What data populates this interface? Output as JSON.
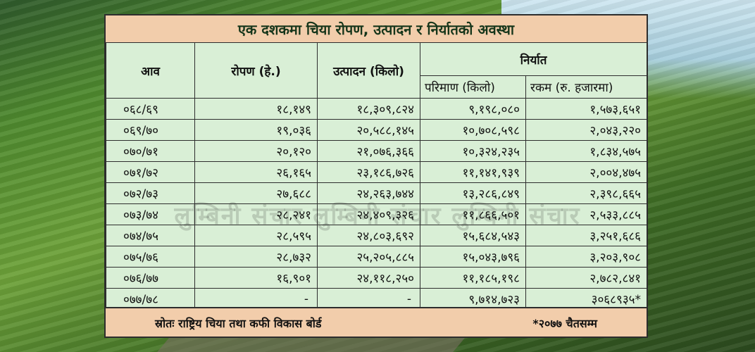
{
  "title": "एक दशकमा चिया रोपण, उत्पादन र निर्यातको अवस्था",
  "headers": {
    "year": "आव",
    "plantation": "रोपण (हे.)",
    "production": "उत्पादन (किलो)",
    "export": "निर्यात",
    "quantity": "परिमाण (किलो)",
    "amount": "रकम (रु. हजारमा)"
  },
  "rows": [
    {
      "year": "०६८/६९",
      "plantation": "१८,१४९",
      "production": "१८,३०९,८२४",
      "quantity": "९,१९८,०८०",
      "amount": "१,५७३,६५१"
    },
    {
      "year": "०६९/७०",
      "plantation": "१९,०३६",
      "production": "२०,५८८,१४५",
      "quantity": "१०,७०८,५९८",
      "amount": "२,०४३,२२०"
    },
    {
      "year": "०७०/७१",
      "plantation": "२०,१२०",
      "production": "२१,०७६,३६६",
      "quantity": "१०,३२४,२३५",
      "amount": "१,८३४,५७५"
    },
    {
      "year": "०७१/७२",
      "plantation": "२६,१६५",
      "production": "२३,१८६,७२६",
      "quantity": "११,१४१,९३९",
      "amount": "२,००४,४७५"
    },
    {
      "year": "०७२/७३",
      "plantation": "२७,६८८",
      "production": "२४,२६३,७४४",
      "quantity": "१३,२८६,८४९",
      "amount": "२,३९८,६६५"
    },
    {
      "year": "०७३/७४",
      "plantation": "२८,२४१",
      "production": "२४,४०९,३२६",
      "quantity": "११,८६६,५०१",
      "amount": "२,५३३,८८५"
    },
    {
      "year": "०७४/७५",
      "plantation": "२८,५९५",
      "production": "२४,८०३,६९२",
      "quantity": "१५,६८४,५४३",
      "amount": "३,२५१,६८६"
    },
    {
      "year": "०७५/७६",
      "plantation": "२८,७३२",
      "production": "२५,२०५,८८५",
      "quantity": "१५,०४३,७९६",
      "amount": "३,२०३,९०८"
    },
    {
      "year": "०७६/७७",
      "plantation": "१६,९०१",
      "production": "२४,११८,२५०",
      "quantity": "११,१८५,१९८",
      "amount": "२,७८२,८४१"
    },
    {
      "year": "०७७/७८",
      "plantation": "-",
      "production": "-",
      "quantity": "९,७१४,७२३",
      "amount": "३०६८९३५*"
    }
  ],
  "footer": {
    "source": "स्रोतः राष्ट्रिय चिया तथा कफी विकास बोर्ड",
    "note": "*२०७७ चैतसम्म"
  },
  "watermark": "लुम्बिनी संचार  लुम्बिनी संचार  लुम्बिनी संचार"
}
